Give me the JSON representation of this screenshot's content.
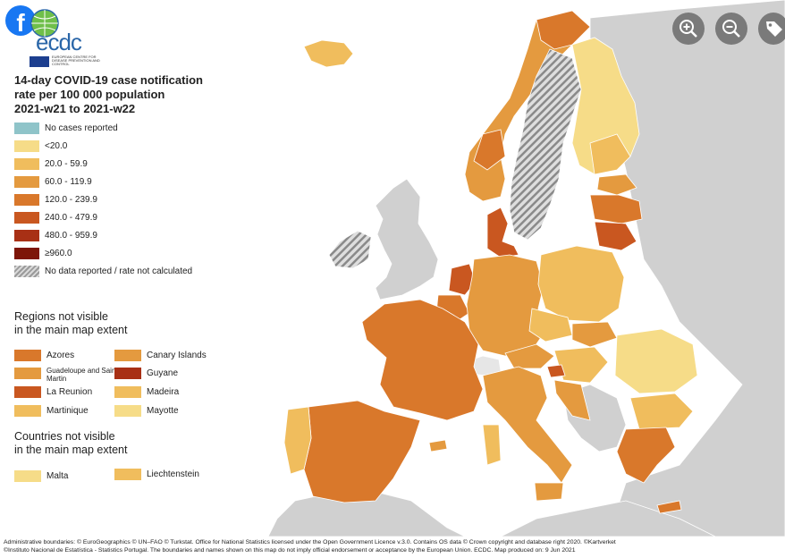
{
  "header": {
    "facebook_glyph": "f",
    "logo_text": "ecdc",
    "eu_text": "EUROPEAN CENTRE FOR DISEASE PREVENTION AND CONTROL"
  },
  "title": {
    "line1": "14-day COVID-19 case notification",
    "line2": "rate per 100 000 population",
    "line3": "2021-w21 to 2021-w22"
  },
  "legend": [
    {
      "label": "No cases reported",
      "color": "#8fc4c9"
    },
    {
      "label": "<20.0",
      "color": "#f6dc88"
    },
    {
      "label": "20.0 - 59.9",
      "color": "#f0bd5d"
    },
    {
      "label": "60.0 - 119.9",
      "color": "#e49a3f"
    },
    {
      "label": "120.0 - 239.9",
      "color": "#d9782b"
    },
    {
      "label": "240.0 - 479.9",
      "color": "#c95720"
    },
    {
      "label": "480.0 - 959.9",
      "color": "#a83015"
    },
    {
      "label": "≥960.0",
      "color": "#7d1508"
    },
    {
      "label": "No data reported / rate not calculated",
      "color": "hatch"
    }
  ],
  "regions_title": {
    "line1": "Regions not visible",
    "line2": "in the main map extent"
  },
  "regions": [
    {
      "label": "Azores",
      "color": "#d9782b"
    },
    {
      "label": "Canary Islands",
      "color": "#e49a3f"
    },
    {
      "label": "Guadeloupe and Saint Martin",
      "color": "#e49a3f"
    },
    {
      "label": "Guyane",
      "color": "#a83015"
    },
    {
      "label": "La Reunion",
      "color": "#c95720"
    },
    {
      "label": "Madeira",
      "color": "#f0bd5d"
    },
    {
      "label": "Martinique",
      "color": "#f0bd5d"
    },
    {
      "label": "Mayotte",
      "color": "#f6dc88"
    }
  ],
  "countries_title": {
    "line1": "Countries not visible",
    "line2": "in the main map extent"
  },
  "countries": [
    {
      "label": "Malta",
      "color": "#f6dc88"
    },
    {
      "label": "Liechtenstein",
      "color": "#f0bd5d"
    }
  ],
  "toolbar": {
    "zoom_in_icon": "zoom-in-icon",
    "zoom_out_icon": "zoom-out-icon",
    "tag_icon": "tag-icon"
  },
  "footer": {
    "line1": "Administrative boundaries: © EuroGeographics © UN–FAO © Turkstat. Office for National Statistics licensed under the Open Government Licence v.3.0. Contains OS data © Crown copyright and database right 2020. ©Kartverket",
    "line2": "©Instituto Nacional de Estatística - Statistics Portugal. The boundaries and names shown on this map do not imply official endorsement or acceptance by the European Union. ECDC. Map produced on: 9 Jun 2021"
  },
  "map_colors": {
    "sea": "#ffffff",
    "non_eu": "#d0d0d0",
    "border": "#ffffff"
  }
}
